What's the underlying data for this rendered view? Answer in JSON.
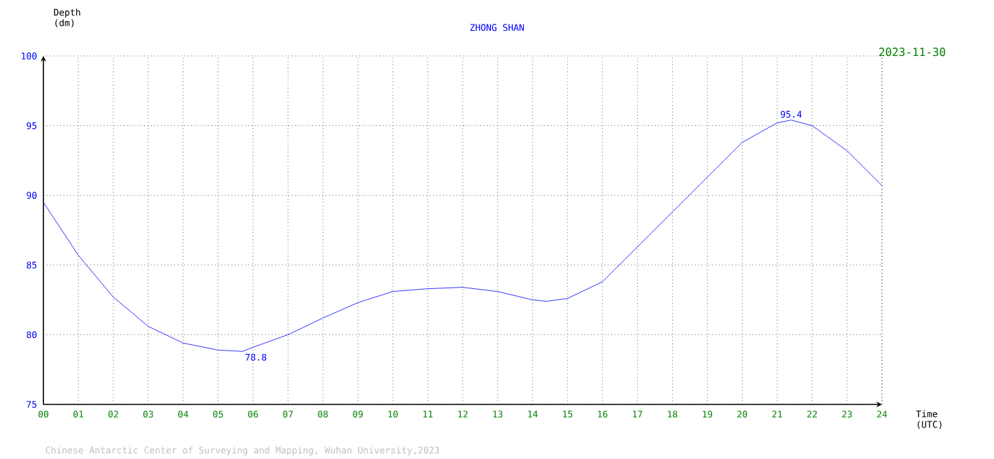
{
  "chart_data": {
    "type": "line",
    "title": "ZHONG SHAN",
    "xlabel": "Time (UTC)",
    "ylabel": "Depth (dm)",
    "x": [
      0,
      1,
      2,
      3,
      4,
      5,
      5.7,
      6,
      7,
      8,
      9,
      10,
      11,
      12,
      13,
      14,
      14.4,
      15,
      16,
      17,
      18,
      19,
      20,
      21,
      21.4,
      22,
      23,
      24
    ],
    "series": [
      {
        "color": "#0000ff",
        "values": [
          89.5,
          85.7,
          82.7,
          80.6,
          79.4,
          78.9,
          78.8,
          79.1,
          80.0,
          81.2,
          82.3,
          83.1,
          83.3,
          83.4,
          83.1,
          82.5,
          82.4,
          82.6,
          83.8,
          86.3,
          88.8,
          91.3,
          93.8,
          95.2,
          95.4,
          95.0,
          93.2,
          90.7
        ]
      }
    ],
    "xlim": [
      0,
      24
    ],
    "ylim": [
      75,
      100
    ],
    "xticks": [
      {
        "value": 0,
        "label": "00"
      },
      {
        "value": 1,
        "label": "01"
      },
      {
        "value": 2,
        "label": "02"
      },
      {
        "value": 3,
        "label": "03"
      },
      {
        "value": 4,
        "label": "04"
      },
      {
        "value": 5,
        "label": "05"
      },
      {
        "value": 6,
        "label": "06"
      },
      {
        "value": 7,
        "label": "07"
      },
      {
        "value": 8,
        "label": "08"
      },
      {
        "value": 9,
        "label": "09"
      },
      {
        "value": 10,
        "label": "10"
      },
      {
        "value": 11,
        "label": "11"
      },
      {
        "value": 12,
        "label": "12"
      },
      {
        "value": 13,
        "label": "13"
      },
      {
        "value": 14,
        "label": "14"
      },
      {
        "value": 15,
        "label": "15"
      },
      {
        "value": 16,
        "label": "16"
      },
      {
        "value": 17,
        "label": "17"
      },
      {
        "value": 18,
        "label": "18"
      },
      {
        "value": 19,
        "label": "19"
      },
      {
        "value": 20,
        "label": "20"
      },
      {
        "value": 21,
        "label": "21"
      },
      {
        "value": 22,
        "label": "22"
      },
      {
        "value": 23,
        "label": "23"
      },
      {
        "value": 24,
        "label": "24"
      }
    ],
    "yticks": [
      75,
      80,
      85,
      90,
      95,
      100
    ],
    "grid": true,
    "annotations": [
      {
        "text": "78.8",
        "x": 5.7,
        "y": 78.8
      },
      {
        "text": "95.4",
        "x": 21.4,
        "y": 95.4
      },
      "2023-11-30",
      "Chinese Antarctic Center of Surveying and Mapping, Wuhan University,2023"
    ]
  }
}
